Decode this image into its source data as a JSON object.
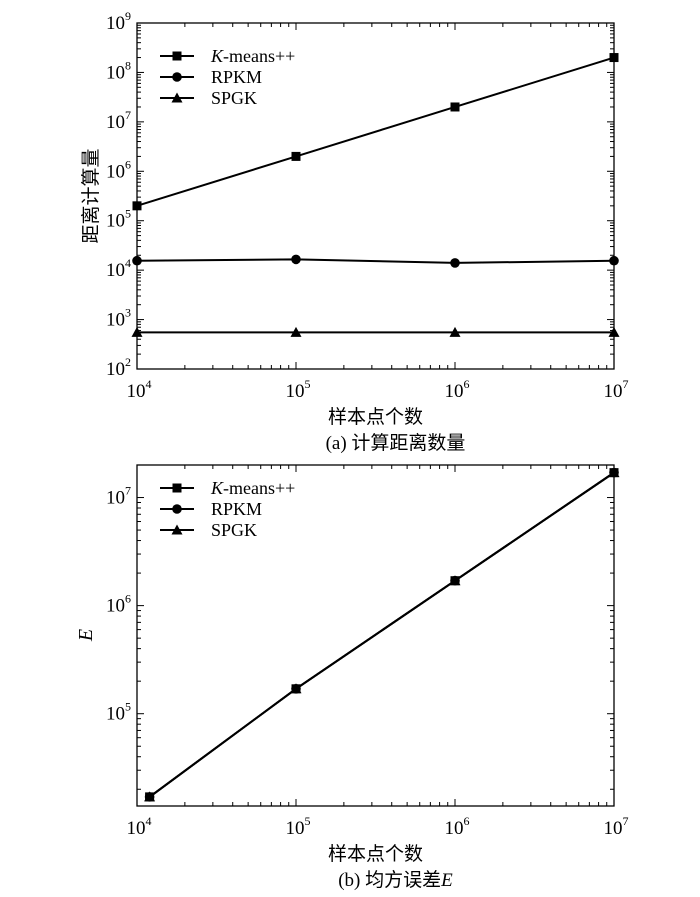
{
  "chart_data": [
    {
      "type": "line",
      "caption": "(a) 计算距离数量",
      "xlabel": "样本点个数",
      "ylabel": "距离计算量",
      "xscale": "log",
      "yscale": "log",
      "xlim": [
        10000,
        10000000
      ],
      "ylim": [
        100,
        1000000000
      ],
      "x_ticks": [
        {
          "base": "10",
          "exp": "4"
        },
        {
          "base": "10",
          "exp": "5"
        },
        {
          "base": "10",
          "exp": "6"
        },
        {
          "base": "10",
          "exp": "7"
        }
      ],
      "y_ticks": [
        {
          "base": "10",
          "exp": "2"
        },
        {
          "base": "10",
          "exp": "3"
        },
        {
          "base": "10",
          "exp": "4"
        },
        {
          "base": "10",
          "exp": "5"
        },
        {
          "base": "10",
          "exp": "6"
        },
        {
          "base": "10",
          "exp": "7"
        },
        {
          "base": "10",
          "exp": "8"
        },
        {
          "base": "10",
          "exp": "9"
        }
      ],
      "legend_position": "top-left",
      "grid": false,
      "x": [
        10000,
        100000,
        1000000,
        10000000
      ],
      "series": [
        {
          "name_italic": "K",
          "name_rest": "-means++",
          "marker": "square",
          "values": [
            200000,
            2000000,
            20000000,
            200000000
          ]
        },
        {
          "name_italic": "",
          "name_rest": "RPKM",
          "marker": "circle",
          "values": [
            15500,
            16500,
            14000,
            15500
          ]
        },
        {
          "name_italic": "",
          "name_rest": "SPGK",
          "marker": "triangle",
          "values": [
            550,
            550,
            550,
            550
          ]
        }
      ]
    },
    {
      "type": "line",
      "caption_prefix": "(b) 均方误差",
      "caption_italic": "E",
      "xlabel": "样本点个数",
      "ylabel": "E",
      "xscale": "log",
      "yscale": "log",
      "xlim": [
        10000,
        10000000
      ],
      "ylim": [
        14000,
        20000000
      ],
      "x_ticks": [
        {
          "base": "10",
          "exp": "4"
        },
        {
          "base": "10",
          "exp": "5"
        },
        {
          "base": "10",
          "exp": "6"
        },
        {
          "base": "10",
          "exp": "7"
        }
      ],
      "y_ticks": [
        {
          "base": "10",
          "exp": "5"
        },
        {
          "base": "10",
          "exp": "6"
        },
        {
          "base": "10",
          "exp": "7"
        }
      ],
      "legend_position": "top-left",
      "grid": false,
      "x": [
        12000,
        100000,
        1000000,
        10000000
      ],
      "series": [
        {
          "name_italic": "K",
          "name_rest": "-means++",
          "marker": "square",
          "values": [
            17000,
            170000,
            1700000,
            17000000
          ]
        },
        {
          "name_italic": "",
          "name_rest": "RPKM",
          "marker": "circle",
          "values": [
            17000,
            170000,
            1700000,
            17000000
          ]
        },
        {
          "name_italic": "",
          "name_rest": "SPGK",
          "marker": "triangle",
          "values": [
            17000,
            170000,
            1700000,
            17000000
          ]
        }
      ]
    }
  ]
}
